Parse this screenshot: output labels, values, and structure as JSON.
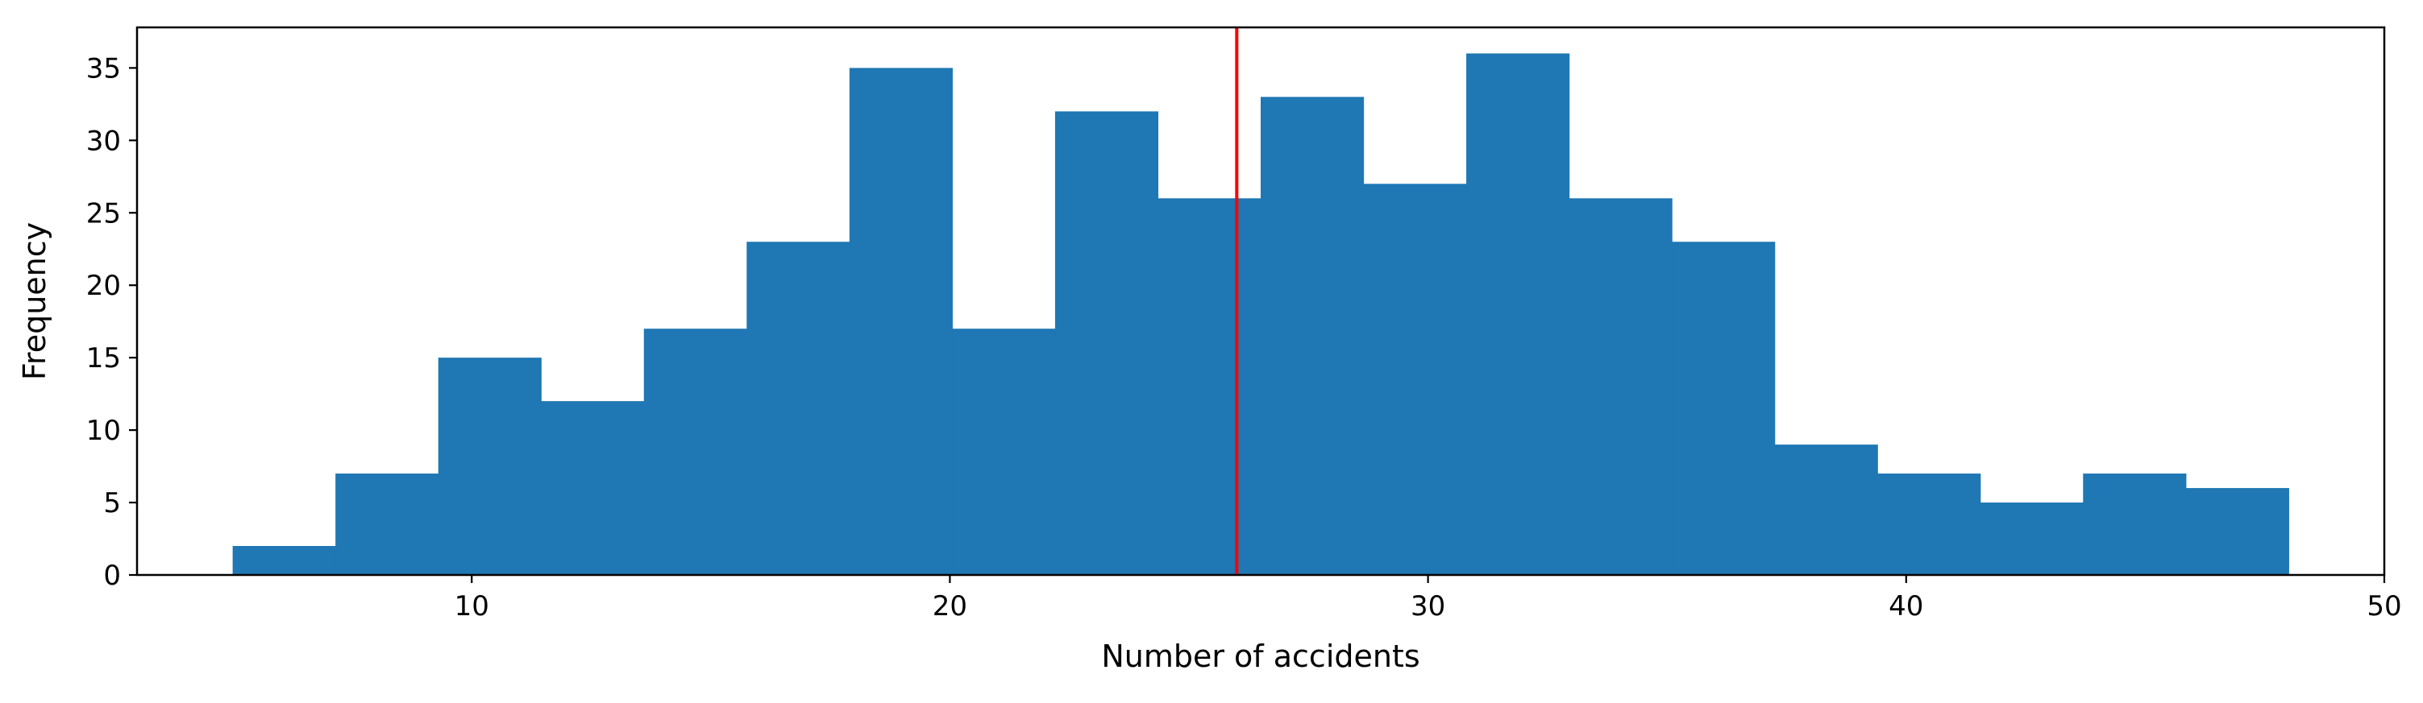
{
  "chart_data": {
    "type": "bar",
    "subtype": "histogram",
    "title": "",
    "xlabel": "Number of accidents",
    "ylabel": "Frequency",
    "xlim": [
      3,
      50
    ],
    "ylim": [
      0,
      37.8
    ],
    "xticks": [
      10,
      20,
      30,
      40,
      50
    ],
    "yticks": [
      0,
      5,
      10,
      15,
      20,
      25,
      30,
      35
    ],
    "grid": false,
    "legend": "none",
    "bar_color": "#1f77b4",
    "bins": [
      {
        "x0": 5.0,
        "x1": 7.15,
        "count": 2
      },
      {
        "x0": 7.15,
        "x1": 9.3,
        "count": 7
      },
      {
        "x0": 9.3,
        "x1": 11.45,
        "count": 15
      },
      {
        "x0": 11.45,
        "x1": 13.6,
        "count": 12
      },
      {
        "x0": 13.6,
        "x1": 15.75,
        "count": 17
      },
      {
        "x0": 15.75,
        "x1": 17.9,
        "count": 23
      },
      {
        "x0": 17.9,
        "x1": 20.05,
        "count": 35
      },
      {
        "x0": 20.05,
        "x1": 22.2,
        "count": 17
      },
      {
        "x0": 22.2,
        "x1": 24.35,
        "count": 32
      },
      {
        "x0": 24.35,
        "x1": 26.5,
        "count": 26
      },
      {
        "x0": 26.5,
        "x1": 28.65,
        "count": 33
      },
      {
        "x0": 28.65,
        "x1": 30.8,
        "count": 27
      },
      {
        "x0": 30.8,
        "x1": 32.95,
        "count": 36
      },
      {
        "x0": 32.95,
        "x1": 35.1,
        "count": 26
      },
      {
        "x0": 35.1,
        "x1": 37.25,
        "count": 23
      },
      {
        "x0": 37.25,
        "x1": 39.4,
        "count": 9
      },
      {
        "x0": 39.4,
        "x1": 41.55,
        "count": 7
      },
      {
        "x0": 41.55,
        "x1": 43.7,
        "count": 5
      },
      {
        "x0": 43.7,
        "x1": 45.85,
        "count": 7
      },
      {
        "x0": 45.85,
        "x1": 48.0,
        "count": 6
      }
    ],
    "reference_line": {
      "x": 26.0,
      "color": "#ff0000"
    }
  }
}
